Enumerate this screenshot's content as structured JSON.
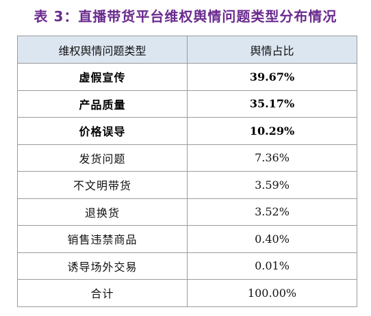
{
  "caption": "表 3：直播带货平台维权舆情问题类型分布情况",
  "table": {
    "headers": [
      "维权舆情问题类型",
      "舆情占比"
    ],
    "rows": [
      {
        "category": "虚假宣传",
        "share": "39.67%",
        "bold": true
      },
      {
        "category": "产品质量",
        "share": "35.17%",
        "bold": true
      },
      {
        "category": "价格误导",
        "share": "10.29%",
        "bold": true
      },
      {
        "category": "发货问题",
        "share": "7.36%",
        "bold": false
      },
      {
        "category": "不文明带货",
        "share": "3.59%",
        "bold": false
      },
      {
        "category": "退换货",
        "share": "3.52%",
        "bold": false
      },
      {
        "category": "销售违禁商品",
        "share": "0.40%",
        "bold": false
      },
      {
        "category": "诱导场外交易",
        "share": "0.01%",
        "bold": false
      },
      {
        "category": "合计",
        "share": "100.00%",
        "bold": false
      }
    ]
  },
  "colors": {
    "caption": "#6a2a8e",
    "header_background": "#dce6f1",
    "border": "#9a9a9a"
  }
}
